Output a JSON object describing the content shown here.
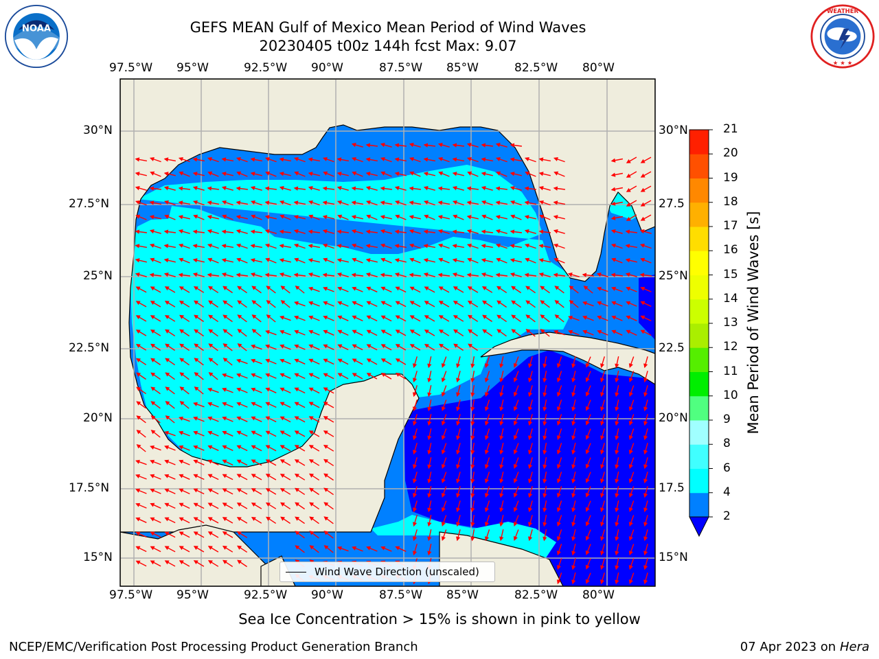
{
  "title": {
    "line1": "GEFS MEAN Gulf of Mexico Mean Period of Wind Waves",
    "line2": "20230405 t00z 144h fcst   Max: 9.07"
  },
  "axes": {
    "lon_ticks": [
      "97.5°W",
      "95°W",
      "92.5°W",
      "90°W",
      "87.5°W",
      "85°W",
      "82.5°W",
      "80°W"
    ],
    "lat_ticks": [
      "30°N",
      "27.5°N",
      "25°N",
      "22.5°N",
      "20°N",
      "17.5°N",
      "15°N"
    ],
    "lat_ticks_right": [
      "30°N",
      "27.5",
      "25°N",
      "22.5",
      "20°N",
      "17.5",
      "15°N"
    ]
  },
  "legend": {
    "label": "Wind Wave Direction (unscaled)"
  },
  "colorbar": {
    "label": "Mean Period of Wind Waves [s]",
    "ticks": [
      "2",
      "4",
      "6",
      "8",
      "9",
      "10",
      "11",
      "12",
      "13",
      "14",
      "15",
      "16",
      "17",
      "18",
      "19",
      "20",
      "21"
    ],
    "colors": [
      "#0080ff",
      "#00ffff",
      "#40ffff",
      "#a0ffff",
      "#50ff80",
      "#00ee00",
      "#55ee00",
      "#aaee00",
      "#ccff00",
      "#eeff00",
      "#ffff00",
      "#ffdd00",
      "#ffb000",
      "#ff8800",
      "#ff5000",
      "#ff2000"
    ],
    "extend_color": "#0000ff"
  },
  "map_colors": {
    "land": "#efeddd",
    "c2": "#0000ff",
    "c4": "#0080ff",
    "c6": "#00ffff",
    "c8": "#a0ffff",
    "arrow": "#ff0000"
  },
  "footer": {
    "note": "Sea Ice Concentration > 15% is shown in pink to yellow",
    "credit": "NCEP/EMC/Verification Post Processing Product Generation Branch",
    "date": "07 Apr 2023 on",
    "machine": "Hera"
  },
  "logos": {
    "left_icon": "noaa-logo",
    "right_icon": "nws-logo"
  }
}
